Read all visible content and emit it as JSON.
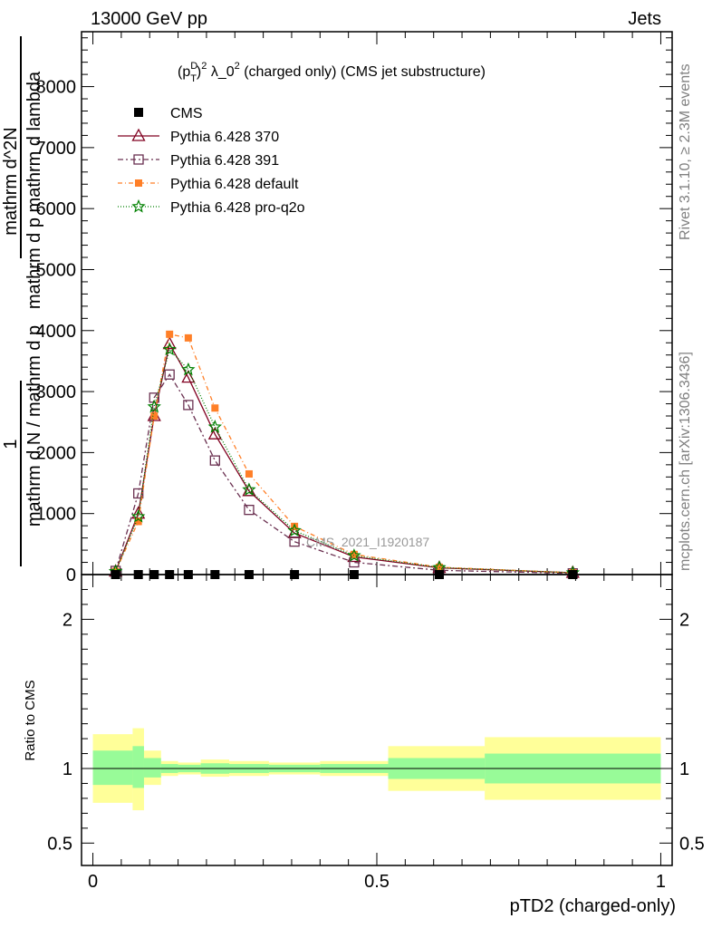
{
  "header": {
    "left": "13000 GeV pp",
    "right": "Jets"
  },
  "side_labels": {
    "top": "Rivet 3.1.10, ≥ 2.3M events",
    "bottom": "mcplots.cern.ch [arXiv:1306.3436]"
  },
  "watermark": "CMS_2021_I1920187",
  "chart_data": [
    {
      "type": "line",
      "panel": "main",
      "title_parts": {
        "p": "(p",
        "sup": "D",
        "sub": "T",
        "close": ")",
        "sq": "2",
        "lambda": " λ_0",
        "sq2": "2",
        "rest": " (charged only) (CMS jet substructure)"
      },
      "ylabel_numerator": "1",
      "ylabel_denominator_lower": "mathrm d N / mathrm d p",
      "ylabel_numerator_full": "mathrm d^2N",
      "ylabel_lines": [
        "mathrm d N / mathrm d p",
        "mathrm d^2N",
        "mathrm d p mathrm d lambda"
      ],
      "xlim": [
        -0.02,
        1.02
      ],
      "ylim": [
        0,
        8900
      ],
      "yticks": [
        0,
        1000,
        2000,
        3000,
        4000,
        5000,
        6000,
        7000,
        8000
      ],
      "ytick_labels": [
        "0",
        "1000",
        "2000",
        "3000",
        "4000",
        "5000",
        "6000",
        "7000",
        "8000"
      ],
      "legend_position": "top-left",
      "series": [
        {
          "name": "CMS",
          "color": "#000000",
          "marker": "square-filled",
          "x": [
            0.04,
            0.08,
            0.108,
            0.135,
            0.168,
            0.215,
            0.275,
            0.355,
            0.46,
            0.61,
            0.845
          ],
          "y": [
            0,
            0,
            0,
            0,
            0,
            0,
            0,
            0,
            0,
            0,
            0
          ]
        },
        {
          "name": "Pythia 6.428 370",
          "color": "#800020",
          "marker": "triangle-open",
          "dash": "",
          "x": [
            0.04,
            0.08,
            0.108,
            0.135,
            0.168,
            0.215,
            0.275,
            0.355,
            0.46,
            0.61,
            0.845
          ],
          "y": [
            50,
            1000,
            2600,
            3780,
            3230,
            2300,
            1370,
            680,
            290,
            110,
            30
          ]
        },
        {
          "name": "Pythia 6.428 391",
          "color": "#6a3050",
          "marker": "square-open",
          "dash": "6,3,2,3",
          "x": [
            0.04,
            0.08,
            0.108,
            0.135,
            0.168,
            0.215,
            0.275,
            0.355,
            0.46,
            0.61,
            0.845
          ],
          "y": [
            60,
            1330,
            2900,
            3280,
            2780,
            1870,
            1060,
            540,
            200,
            70,
            20
          ]
        },
        {
          "name": "Pythia 6.428 default",
          "color": "#ff7f27",
          "marker": "square-filled-small",
          "dash": "5,3,1,3",
          "x": [
            0.04,
            0.08,
            0.108,
            0.135,
            0.168,
            0.215,
            0.275,
            0.355,
            0.46,
            0.61,
            0.845
          ],
          "y": [
            50,
            870,
            2600,
            3940,
            3880,
            2730,
            1650,
            790,
            330,
            120,
            30
          ]
        },
        {
          "name": "Pythia 6.428 pro-q2o",
          "color": "#008000",
          "marker": "star",
          "dash": "1,2",
          "x": [
            0.04,
            0.08,
            0.108,
            0.135,
            0.168,
            0.215,
            0.275,
            0.355,
            0.46,
            0.61,
            0.845
          ],
          "y": [
            50,
            950,
            2750,
            3690,
            3360,
            2420,
            1390,
            720,
            310,
            115,
            30
          ]
        }
      ]
    },
    {
      "type": "area",
      "panel": "ratio",
      "ylabel": "Ratio to CMS",
      "xlabel": "pTD2 (charged-only)",
      "xlim": [
        -0.02,
        1.02
      ],
      "ylim": [
        0.35,
        2.3
      ],
      "yticks": [
        0.5,
        1,
        2
      ],
      "ytick_labels": [
        "0.5",
        "1",
        "2"
      ],
      "xticks": [
        0,
        0.5,
        1
      ],
      "xtick_labels": [
        "0",
        "0.5",
        "1"
      ],
      "reference_line": 1,
      "bands": [
        {
          "x0": 0.0,
          "x1": 0.07,
          "inner": [
            0.89,
            1.12
          ],
          "outer": [
            0.77,
            1.23
          ]
        },
        {
          "x0": 0.07,
          "x1": 0.09,
          "inner": [
            0.87,
            1.15
          ],
          "outer": [
            0.72,
            1.27
          ]
        },
        {
          "x0": 0.09,
          "x1": 0.12,
          "inner": [
            0.94,
            1.07
          ],
          "outer": [
            0.89,
            1.12
          ]
        },
        {
          "x0": 0.12,
          "x1": 0.15,
          "inner": [
            0.97,
            1.03
          ],
          "outer": [
            0.95,
            1.05
          ]
        },
        {
          "x0": 0.15,
          "x1": 0.19,
          "inner": [
            0.975,
            1.025
          ],
          "outer": [
            0.96,
            1.04
          ]
        },
        {
          "x0": 0.19,
          "x1": 0.24,
          "inner": [
            0.965,
            1.035
          ],
          "outer": [
            0.945,
            1.06
          ]
        },
        {
          "x0": 0.24,
          "x1": 0.31,
          "inner": [
            0.97,
            1.03
          ],
          "outer": [
            0.95,
            1.05
          ]
        },
        {
          "x0": 0.31,
          "x1": 0.4,
          "inner": [
            0.975,
            1.025
          ],
          "outer": [
            0.96,
            1.04
          ]
        },
        {
          "x0": 0.4,
          "x1": 0.52,
          "inner": [
            0.97,
            1.03
          ],
          "outer": [
            0.95,
            1.05
          ]
        },
        {
          "x0": 0.52,
          "x1": 0.69,
          "inner": [
            0.93,
            1.07
          ],
          "outer": [
            0.85,
            1.15
          ]
        },
        {
          "x0": 0.69,
          "x1": 1.0,
          "inner": [
            0.9,
            1.1
          ],
          "outer": [
            0.79,
            1.21
          ]
        }
      ],
      "colors": {
        "inner": "#98fb98",
        "outer": "#ffff99"
      }
    }
  ]
}
